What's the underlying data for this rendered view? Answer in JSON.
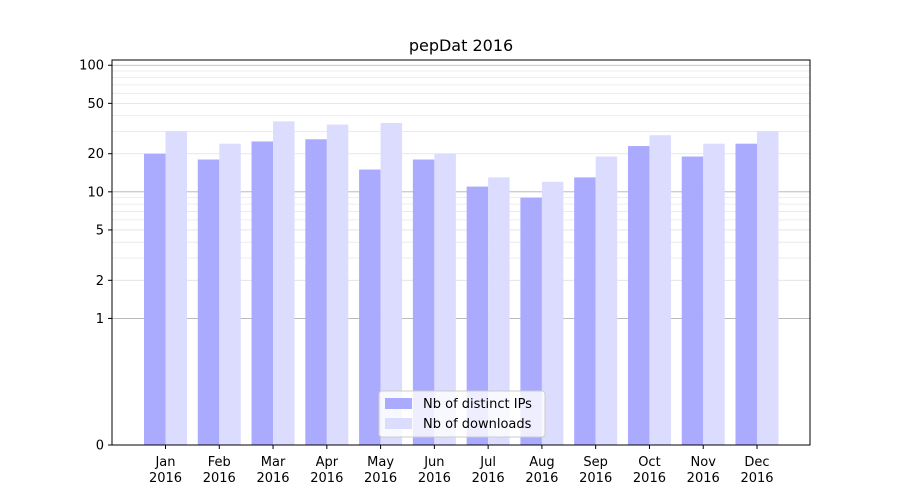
{
  "chart_data": {
    "type": "bar",
    "title": "pepDat 2016",
    "xlabel": "",
    "ylabel": "",
    "yscale": "symlog",
    "ylim": [
      0,
      110
    ],
    "yticks": [
      0,
      1,
      2,
      5,
      10,
      20,
      50,
      100
    ],
    "grid": true,
    "legend_position": "lower center",
    "categories": [
      [
        "Jan",
        "2016"
      ],
      [
        "Feb",
        "2016"
      ],
      [
        "Mar",
        "2016"
      ],
      [
        "Apr",
        "2016"
      ],
      [
        "May",
        "2016"
      ],
      [
        "Jun",
        "2016"
      ],
      [
        "Jul",
        "2016"
      ],
      [
        "Aug",
        "2016"
      ],
      [
        "Sep",
        "2016"
      ],
      [
        "Oct",
        "2016"
      ],
      [
        "Nov",
        "2016"
      ],
      [
        "Dec",
        "2016"
      ]
    ],
    "series": [
      {
        "name": "Nb of distinct IPs",
        "color": "#aaaaff",
        "values": [
          20,
          18,
          25,
          26,
          15,
          18,
          11,
          9,
          13,
          23,
          19,
          24
        ]
      },
      {
        "name": "Nb of downloads",
        "color": "#dcdcff",
        "values": [
          30,
          24,
          36,
          34,
          35,
          20,
          13,
          12,
          19,
          28,
          24,
          30
        ]
      }
    ]
  }
}
